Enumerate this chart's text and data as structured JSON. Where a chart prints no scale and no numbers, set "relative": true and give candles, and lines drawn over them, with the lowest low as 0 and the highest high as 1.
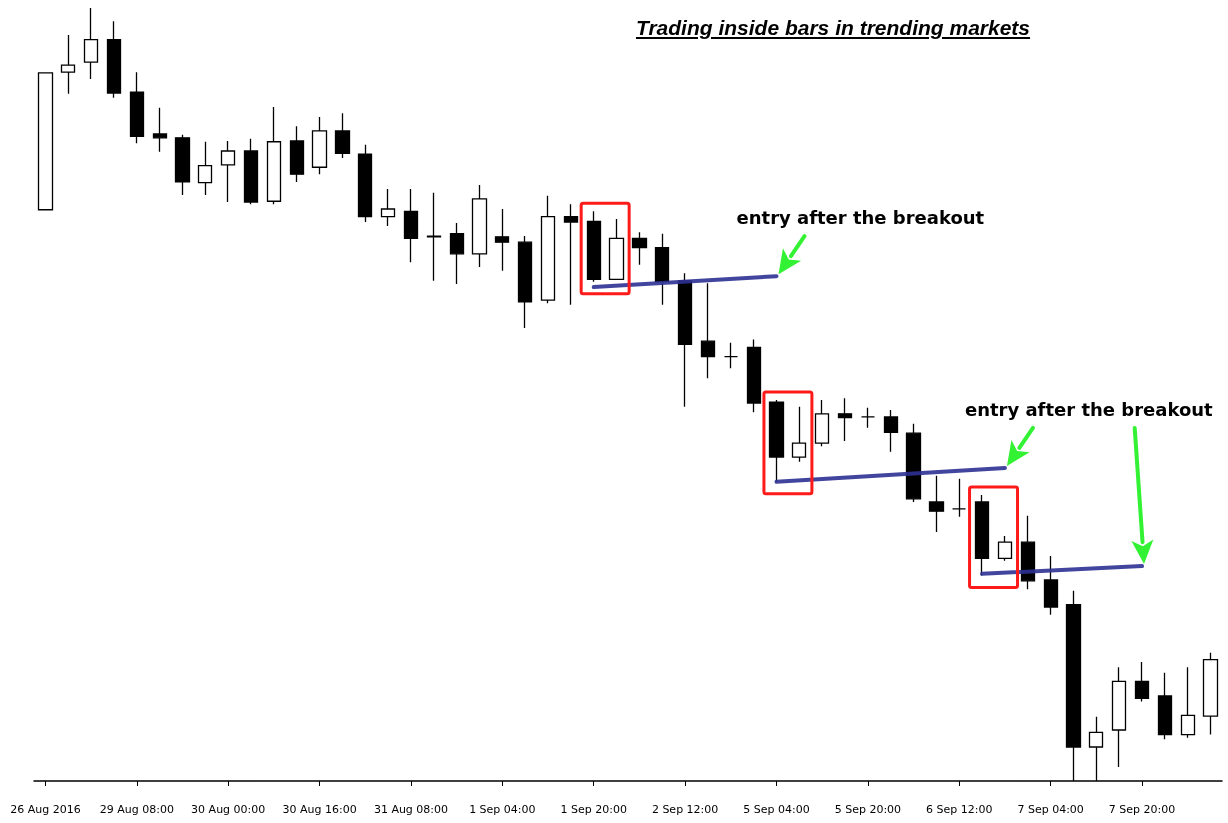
{
  "chart_data": {
    "type": "candlestick",
    "title": "Trading inside bars in trending markets",
    "relative": true,
    "categories": [
      "26 Aug 2016",
      null,
      null,
      null,
      "29 Aug 08:00",
      null,
      null,
      null,
      "30 Aug 00:00",
      null,
      null,
      null,
      "30 Aug 16:00",
      null,
      null,
      null,
      "31 Aug 08:00",
      null,
      null,
      null,
      "1 Sep 04:00",
      null,
      null,
      null,
      "1 Sep 20:00",
      null,
      null,
      null,
      "2 Sep 12:00",
      null,
      null,
      null,
      "5 Sep 04:00",
      null,
      null,
      null,
      "5 Sep 20:00",
      null,
      null,
      null,
      "6 Sep 12:00",
      null,
      null,
      null,
      "7 Sep 04:00",
      null,
      null,
      null,
      "7 Sep 20:00",
      null,
      null,
      null
    ],
    "ohlc": [
      [
        0.739,
        0.916,
        0.739,
        0.916
      ],
      [
        0.917,
        0.965,
        0.889,
        0.926
      ],
      [
        0.93,
        1,
        0.908,
        0.959
      ],
      [
        0.959,
        0.983,
        0.884,
        0.89
      ],
      [
        0.891,
        0.917,
        0.825,
        0.834
      ],
      [
        0.837,
        0.871,
        0.814,
        0.832
      ],
      [
        0.832,
        0.836,
        0.758,
        0.775
      ],
      [
        0.774,
        0.827,
        0.758,
        0.796
      ],
      [
        0.797,
        0.828,
        0.749,
        0.815
      ],
      [
        0.815,
        0.831,
        0.746,
        0.749
      ],
      [
        0.75,
        0.872,
        0.746,
        0.827
      ],
      [
        0.828,
        0.847,
        0.775,
        0.785
      ],
      [
        0.794,
        0.859,
        0.785,
        0.841
      ],
      [
        0.841,
        0.864,
        0.806,
        0.812
      ],
      [
        0.811,
        0.823,
        0.723,
        0.73
      ],
      [
        0.73,
        0.766,
        0.718,
        0.74
      ],
      [
        0.737,
        0.766,
        0.671,
        0.702
      ],
      [
        0.705,
        0.761,
        0.647,
        0.704
      ],
      [
        0.708,
        0.722,
        0.643,
        0.682
      ],
      [
        0.682,
        0.771,
        0.665,
        0.753
      ],
      [
        0.704,
        0.74,
        0.66,
        0.697
      ],
      [
        0.697,
        0.705,
        0.586,
        0.62
      ],
      [
        0.622,
        0.757,
        0.618,
        0.73
      ],
      [
        0.73,
        0.746,
        0.616,
        0.723
      ],
      [
        0.724,
        0.737,
        0.646,
        0.649
      ],
      [
        0.649,
        0.727,
        0.649,
        0.702
      ],
      [
        0.702,
        0.71,
        0.668,
        0.69
      ],
      [
        0.69,
        0.708,
        0.616,
        0.646
      ],
      [
        0.647,
        0.657,
        0.484,
        0.565
      ],
      [
        0.569,
        0.644,
        0.521,
        0.549
      ],
      [
        0.549,
        0.567,
        0.534,
        0.549
      ],
      [
        0.561,
        0.571,
        0.477,
        0.489
      ],
      [
        0.49,
        0.493,
        0.387,
        0.419
      ],
      [
        0.419,
        0.484,
        0.413,
        0.437
      ],
      [
        0.437,
        0.493,
        0.433,
        0.475
      ],
      [
        0.475,
        0.495,
        0.44,
        0.47
      ],
      [
        0.471,
        0.483,
        0.457,
        0.471
      ],
      [
        0.471,
        0.48,
        0.426,
        0.451
      ],
      [
        0.45,
        0.462,
        0.361,
        0.365
      ],
      [
        0.361,
        0.395,
        0.322,
        0.349
      ],
      [
        0.352,
        0.391,
        0.342,
        0.352
      ],
      [
        0.361,
        0.37,
        0.266,
        0.288
      ],
      [
        0.288,
        0.317,
        0.285,
        0.309
      ],
      [
        0.309,
        0.343,
        0.248,
        0.259
      ],
      [
        0.26,
        0.291,
        0.215,
        0.225
      ],
      [
        0.228,
        0.246,
        0,
        0.044
      ],
      [
        0.044,
        0.083,
        0,
        0.063
      ],
      [
        0.066,
        0.147,
        0.018,
        0.129
      ],
      [
        0.129,
        0.154,
        0.103,
        0.107
      ],
      [
        0.11,
        0.14,
        0.054,
        0.06
      ],
      [
        0.06,
        0.147,
        0.056,
        0.085
      ],
      [
        0.084,
        0.166,
        0.06,
        0.157
      ]
    ],
    "series": [
      {
        "type": "line",
        "color": "#2e3192",
        "values": [
          null,
          null,
          null,
          null,
          null,
          null,
          null,
          null,
          null,
          null,
          null,
          null,
          null,
          null,
          null,
          null,
          null,
          null,
          null,
          null,
          null,
          null,
          null,
          null,
          0.639,
          null,
          null,
          null,
          null,
          null,
          null,
          null,
          0.653,
          null,
          null,
          null,
          null,
          null,
          null,
          null,
          null,
          null,
          null,
          null,
          null,
          null,
          null,
          null,
          null,
          null,
          null,
          null
        ]
      },
      {
        "type": "line",
        "color": "#2e3192",
        "values": [
          null,
          null,
          null,
          null,
          null,
          null,
          null,
          null,
          null,
          null,
          null,
          null,
          null,
          null,
          null,
          null,
          null,
          null,
          null,
          null,
          null,
          null,
          null,
          null,
          null,
          null,
          null,
          null,
          null,
          null,
          null,
          null,
          0.387,
          null,
          null,
          null,
          null,
          null,
          null,
          null,
          null,
          null,
          0.405,
          null,
          null,
          null,
          null,
          null,
          null,
          null,
          null,
          null
        ]
      },
      {
        "type": "line",
        "color": "#2e3192",
        "values": [
          null,
          null,
          null,
          null,
          null,
          null,
          null,
          null,
          null,
          null,
          null,
          null,
          null,
          null,
          null,
          null,
          null,
          null,
          null,
          null,
          null,
          null,
          null,
          null,
          null,
          null,
          null,
          null,
          null,
          null,
          null,
          null,
          null,
          null,
          null,
          null,
          null,
          null,
          null,
          null,
          null,
          0.268,
          null,
          null,
          null,
          null,
          null,
          null,
          0.278,
          null,
          null,
          null
        ]
      }
    ],
    "annotations": [
      "entry after the breakout",
      "entry after the breakout"
    ]
  }
}
